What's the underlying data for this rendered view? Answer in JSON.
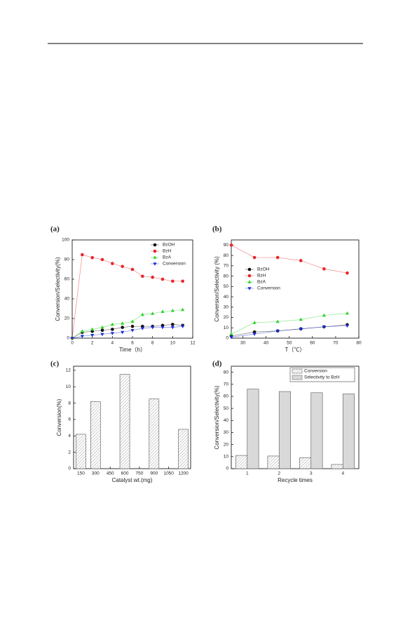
{
  "chart_data": [
    {
      "type": "line",
      "label": "(a)",
      "x_label": "Time（h）",
      "y_label": "Conversion/Selectivity(%)",
      "x": [
        0,
        1,
        2,
        3,
        4,
        5,
        6,
        7,
        8,
        9,
        10,
        11
      ],
      "series": [
        {
          "name": "BzOH",
          "color": "#111111",
          "marker": "circle",
          "values": [
            0,
            6,
            7,
            8,
            9,
            11,
            12,
            12,
            12,
            13,
            14,
            13
          ]
        },
        {
          "name": "BzH",
          "color": "#e8262b",
          "marker": "circle",
          "values": [
            0,
            85,
            82,
            80,
            76,
            73,
            70,
            63,
            62,
            60,
            58,
            58
          ]
        },
        {
          "name": "BzA",
          "color": "#2fd12f",
          "marker": "triangle-up",
          "values": [
            0,
            7,
            9,
            11,
            14,
            15,
            17,
            24,
            25,
            27,
            28,
            29
          ]
        },
        {
          "name": "Conversion",
          "color": "#1f2fd6",
          "marker": "triangle-down",
          "values": [
            0,
            2,
            3,
            4,
            5,
            6,
            8,
            10,
            11,
            11,
            11,
            12
          ]
        }
      ],
      "xlim": [
        0,
        12
      ],
      "xticks": [
        0,
        2,
        4,
        6,
        8,
        10,
        12
      ],
      "ylim": [
        0,
        100
      ],
      "yticks": [
        0,
        20,
        40,
        60,
        80,
        100
      ],
      "legend": "upper right"
    },
    {
      "type": "line",
      "label": "(b)",
      "x_label": "T（℃）",
      "y_label": "Conversion/Selectivity (%)",
      "x": [
        25,
        35,
        45,
        55,
        65,
        75
      ],
      "series": [
        {
          "name": "BzOH",
          "color": "#111111",
          "marker": "circle",
          "values": [
            2,
            6,
            7,
            9,
            11,
            13
          ]
        },
        {
          "name": "BzH",
          "color": "#e8262b",
          "marker": "circle",
          "values": [
            90,
            78,
            78,
            75,
            67,
            63
          ]
        },
        {
          "name": "BzA",
          "color": "#2fd12f",
          "marker": "triangle-up",
          "values": [
            4,
            15,
            16,
            18,
            22,
            24
          ]
        },
        {
          "name": "Conversion",
          "color": "#1f2fd6",
          "marker": "triangle-down",
          "values": [
            1,
            4,
            7,
            9,
            11,
            12
          ]
        }
      ],
      "xlim": [
        25,
        80
      ],
      "xticks": [
        30,
        40,
        50,
        60,
        70,
        80
      ],
      "ylim": [
        0,
        95
      ],
      "yticks": [
        0,
        10,
        20,
        30,
        40,
        50,
        60,
        70,
        80,
        90
      ],
      "legend": "center left"
    },
    {
      "type": "bar",
      "label": "(c)",
      "x_label": "Catalyst wt.(mg)",
      "y_label": "Conversion(%)",
      "x": [
        150,
        300,
        600,
        900,
        1200
      ],
      "values": [
        4.2,
        8.2,
        11.5,
        8.5,
        4.8
      ],
      "pattern": "hatch",
      "xlim": [
        75,
        1275
      ],
      "xticks": [
        150,
        300,
        450,
        600,
        750,
        900,
        1050,
        1200
      ],
      "ylim": [
        0,
        12.5
      ],
      "yticks": [
        0,
        2,
        4,
        6,
        8,
        10,
        12
      ]
    },
    {
      "type": "grouped-bar",
      "label": "(d)",
      "x_label": "Recycle times",
      "y_label": "Conversion/Selectivity(%)",
      "categories": [
        "1",
        "2",
        "3",
        "4"
      ],
      "series": [
        {
          "name": "Conversion",
          "pattern": "hatch",
          "values": [
            11,
            10.5,
            9,
            3.5
          ]
        },
        {
          "name": "Selectivity to BzH",
          "color": "#d9d9d9",
          "values": [
            66,
            64,
            63,
            62
          ]
        }
      ],
      "ylim": [
        0,
        85
      ],
      "yticks": [
        0,
        10,
        20,
        30,
        40,
        50,
        60,
        70,
        80
      ],
      "legend": "upper right"
    }
  ]
}
